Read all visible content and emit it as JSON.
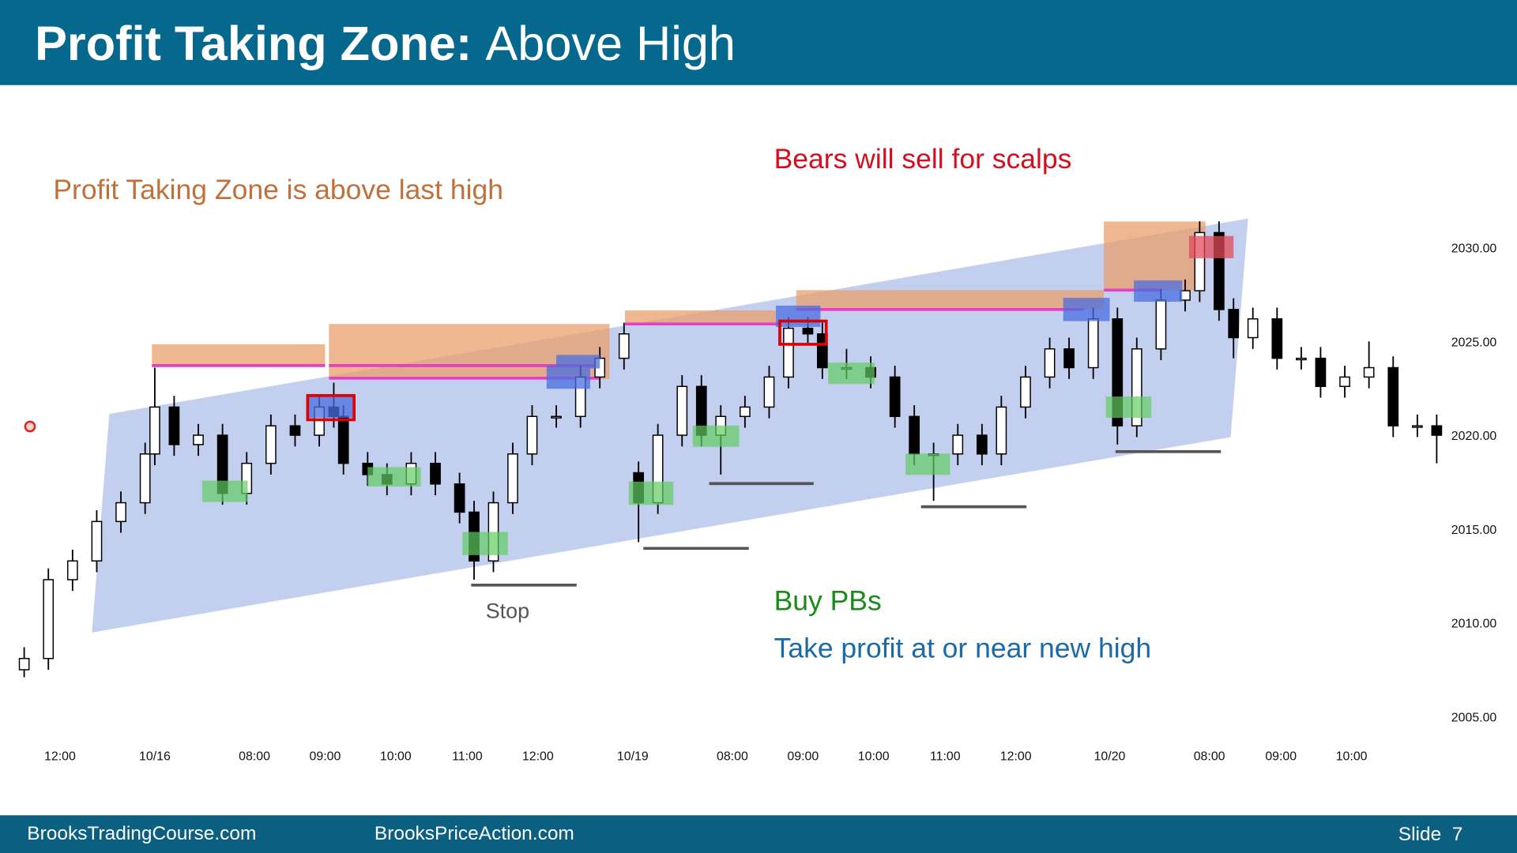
{
  "header": {
    "title_bold": "Profit Taking Zone:",
    "title_rest": "Above High"
  },
  "chart_data": {
    "type": "candlestick",
    "x": [
      1,
      6,
      11,
      16,
      21,
      26,
      28,
      32,
      37,
      42,
      47,
      52,
      57,
      62,
      65,
      67,
      72,
      76,
      81,
      86,
      91,
      94,
      98,
      102,
      106,
      111,
      116,
      120,
      125,
      128,
      132,
      137,
      141,
      145,
      150,
      155,
      159,
      163,
      166,
      171,
      176,
      181,
      185,
      189,
      194,
      199,
      203,
      208,
      213,
      217,
      222,
      227,
      231,
      236,
      241,
      244,
      248,
      251,
      255,
      260,
      265,
      269,
      274,
      279,
      284,
      289,
      293
    ],
    "open": [
      2007.5,
      2008.1,
      2012.3,
      2013.3,
      2015.4,
      2016.4,
      2019,
      2021.5,
      2019.5,
      2020,
      2016.9,
      2018.5,
      2020.5,
      2020,
      2021.5,
      2021,
      2018.5,
      2017.9,
      2017.4,
      2018.5,
      2017.4,
      2015.9,
      2013.3,
      2016.4,
      2019,
      2021,
      2021,
      2023.1,
      2024.1,
      2018,
      2016.4,
      2020,
      2022.6,
      2020,
      2021,
      2021.5,
      2023.1,
      2025.7,
      2025.4,
      2023.6,
      2023.6,
      2023.1,
      2021,
      2019,
      2019,
      2020,
      2019,
      2021.5,
      2023.1,
      2024.6,
      2023.6,
      2026.2,
      2020.5,
      2024.6,
      2027.2,
      2027.7,
      2030.8,
      2026.7,
      2025.2,
      2026.2,
      2024.1,
      2024.1,
      2022.6,
      2023.1,
      2023.6,
      2020.5,
      2020.5
    ],
    "high": [
      2008.7,
      2012.9,
      2013.9,
      2016.0,
      2017.0,
      2019.6,
      2023.6,
      2022.1,
      2020.6,
      2020.6,
      2019.1,
      2021.1,
      2021.1,
      2022.1,
      2022.8,
      2021.6,
      2019.1,
      2018.5,
      2019.1,
      2019.1,
      2018.0,
      2016.5,
      2017.0,
      2019.6,
      2021.6,
      2021.6,
      2023.7,
      2024.7,
      2026.0,
      2018.6,
      2020.6,
      2023.2,
      2023.2,
      2021.6,
      2022.1,
      2023.7,
      2026.3,
      2026.3,
      2026.0,
      2024.6,
      2024.2,
      2023.7,
      2021.6,
      2019.6,
      2020.6,
      2020.6,
      2022.1,
      2023.7,
      2025.2,
      2025.2,
      2026.8,
      2026.8,
      2025.2,
      2027.8,
      2028.3,
      2031.4,
      2031.4,
      2027.3,
      2026.8,
      2026.8,
      2024.7,
      2024.7,
      2023.7,
      2025.0,
      2024.2,
      2021.1,
      2021.1
    ],
    "low": [
      2007.1,
      2007.5,
      2011.7,
      2012.7,
      2014.8,
      2015.8,
      2018.4,
      2018.9,
      2018.9,
      2016.3,
      2016.3,
      2017.9,
      2019.4,
      2019.4,
      2020.4,
      2017.9,
      2017.3,
      2016.8,
      2016.8,
      2016.8,
      2015.3,
      2012.3,
      2012.7,
      2015.8,
      2018.4,
      2020.4,
      2020.4,
      2022.5,
      2023.5,
      2014.3,
      2015.8,
      2019.4,
      2019.4,
      2017.9,
      2020.4,
      2020.9,
      2022.5,
      2024.8,
      2023.0,
      2023.0,
      2022.5,
      2020.4,
      2018.4,
      2016.5,
      2018.4,
      2018.4,
      2018.4,
      2020.9,
      2022.5,
      2023.0,
      2023.0,
      2019.5,
      2019.9,
      2024.0,
      2026.6,
      2027.1,
      2026.1,
      2024.1,
      2024.6,
      2023.5,
      2023.5,
      2022.0,
      2022.0,
      2022.5,
      2019.9,
      2019.9,
      2018.5
    ],
    "close": [
      2008.1,
      2012.3,
      2013.3,
      2015.4,
      2016.4,
      2019,
      2021.5,
      2019.5,
      2020,
      2016.9,
      2018.5,
      2020.5,
      2020,
      2021.5,
      2021,
      2018.5,
      2017.9,
      2017.4,
      2018.5,
      2017.4,
      2015.9,
      2013.3,
      2016.4,
      2019,
      2021,
      2021,
      2023.1,
      2024.1,
      2025.4,
      2016.4,
      2020,
      2022.6,
      2020,
      2021,
      2021.5,
      2023.1,
      2025.7,
      2025.4,
      2023.6,
      2023.6,
      2023.1,
      2021,
      2019,
      2019,
      2020,
      2019,
      2021.5,
      2023.1,
      2024.6,
      2023.6,
      2026.2,
      2020.5,
      2024.6,
      2027.2,
      2027.7,
      2030.8,
      2026.7,
      2025.2,
      2026.2,
      2024.1,
      2024.1,
      2022.6,
      2023.1,
      2023.6,
      2020.5,
      2020.5,
      2020
    ],
    "up_color": "#ffffff",
    "down_color": "#000000",
    "xlim": [
      0,
      294
    ],
    "ylim": [
      2003.5,
      2038
    ],
    "xticks": [
      {
        "value": 8.4,
        "label": "12:00"
      },
      {
        "value": 28,
        "label": "10/16"
      },
      {
        "value": 48.6,
        "label": "08:00"
      },
      {
        "value": 63.2,
        "label": "09:00"
      },
      {
        "value": 77.8,
        "label": "10:00"
      },
      {
        "value": 92.6,
        "label": "11:00"
      },
      {
        "value": 107.2,
        "label": "12:00"
      },
      {
        "value": 126.8,
        "label": "10/19"
      },
      {
        "value": 147.4,
        "label": "08:00"
      },
      {
        "value": 162,
        "label": "09:00"
      },
      {
        "value": 176.6,
        "label": "10:00"
      },
      {
        "value": 191.4,
        "label": "11:00"
      },
      {
        "value": 206,
        "label": "12:00"
      },
      {
        "value": 225.4,
        "label": "10/20"
      },
      {
        "value": 246,
        "label": "08:00"
      },
      {
        "value": 260.8,
        "label": "09:00"
      },
      {
        "value": 275.4,
        "label": "10:00"
      }
    ],
    "yticks": [
      {
        "value": 2005,
        "label": "2005.00"
      },
      {
        "value": 2010,
        "label": "2010.00"
      },
      {
        "value": 2015,
        "label": "2015.00"
      },
      {
        "value": 2020,
        "label": "2020.00"
      },
      {
        "value": 2025,
        "label": "2025.00"
      },
      {
        "value": 2030,
        "label": "2030.00"
      }
    ],
    "annotations": {
      "zone": "Profit Taking Zone is above last high",
      "bears": "Bears will sell for scalps",
      "buy": "Buy PBs",
      "take": "Take profit at or near new high",
      "stop": "Stop"
    }
  },
  "footer": {
    "left": "BrooksTradingCourse.com",
    "center": "BrooksPriceAction.com",
    "slide": "Slide  7"
  }
}
